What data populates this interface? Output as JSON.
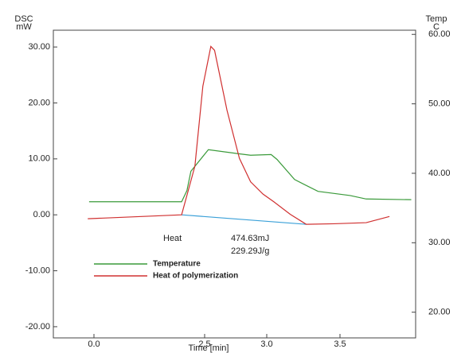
{
  "chart_data": {
    "type": "line",
    "y_label_top": "DSC",
    "y_label_unit": "mW",
    "y2_label_top": "Temp",
    "y2_label_unit": "C",
    "x_label": "Time [min]",
    "xlim": [
      -0.92,
      4.02
    ],
    "xticks": [
      {
        "value": 0,
        "label": "0.0"
      },
      {
        "value": 2.5,
        "label": "2.5"
      },
      {
        "value": 3,
        "label": "3.0"
      },
      {
        "value": 3.5,
        "label": "3.5"
      }
    ],
    "ylim": [
      -22,
      33
    ],
    "yticks": [
      {
        "value": 30,
        "label": "30.00"
      },
      {
        "value": 20,
        "label": "20.00"
      },
      {
        "value": 10,
        "label": "10.00"
      },
      {
        "value": 0,
        "label": "0.00"
      },
      {
        "value": -10,
        "label": "-10.00"
      },
      {
        "value": -20,
        "label": "-20.00"
      }
    ],
    "y2lim": [
      16.3,
      60.6
    ],
    "y2ticks": [
      {
        "value": 60,
        "label": "60.00"
      },
      {
        "value": 50,
        "label": "50.00"
      },
      {
        "value": 40,
        "label": "40.00"
      },
      {
        "value": 30,
        "label": "30.00"
      },
      {
        "value": 20,
        "label": "20.00"
      }
    ],
    "series": [
      {
        "name": "Temperature",
        "color": "#3a9a3a",
        "axis": "y2",
        "x": [
          -0.11,
          1.98,
          2.1,
          2.19,
          2.53,
          2.78,
          2.87,
          3.03,
          3.07,
          3.19,
          3.35,
          3.57,
          3.68,
          3.99
        ],
        "values": [
          35.9,
          35.9,
          37.5,
          40.3,
          43.4,
          42.8,
          42.6,
          42.7,
          42.0,
          39.1,
          37.4,
          36.8,
          36.3,
          36.2
        ]
      },
      {
        "name": "Heat of polymerization",
        "color": "#d03030",
        "x": [
          -0.14,
          1.98,
          2.28,
          2.46,
          2.55,
          2.58,
          2.68,
          2.78,
          2.87,
          2.97,
          3.05,
          3.16,
          3.27,
          3.46,
          3.68,
          3.84
        ],
        "values": [
          -0.7,
          0,
          8.7,
          23,
          30.1,
          29.4,
          18.7,
          10.1,
          5.9,
          3.7,
          2.3,
          0.1,
          -1.7,
          -1.6,
          -1.4,
          -0.3
        ]
      }
    ],
    "baseline": {
      "color": "#3aa0d8",
      "x": [
        1.98,
        3.27
      ],
      "values": [
        0,
        -1.7
      ]
    },
    "annotations": [
      "Heat",
      "474.63mJ",
      "229.29J/g"
    ]
  }
}
